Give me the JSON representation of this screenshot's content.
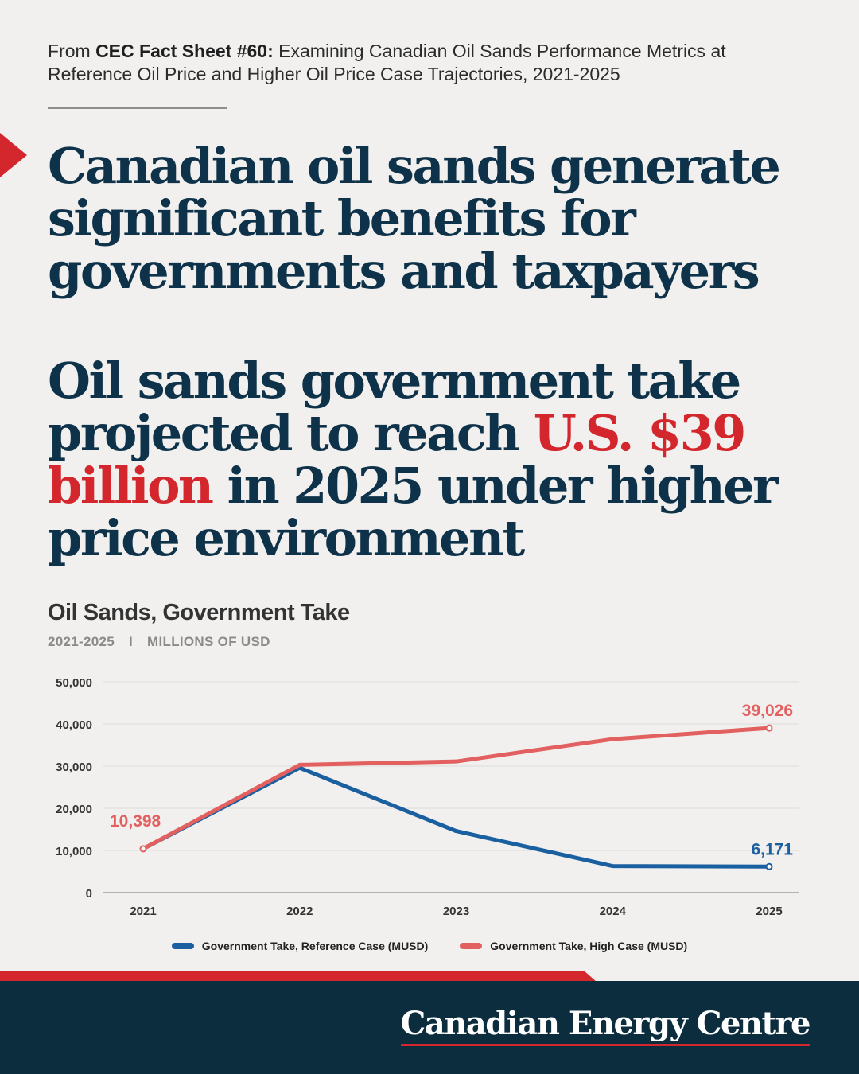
{
  "source": {
    "prefix": "From ",
    "bold": "CEC Fact Sheet #60:",
    "rest": " Examining Canadian Oil Sands Performance Metrics at Reference Oil Price and Higher Oil Price Case Trajectories, 2021-2025"
  },
  "headline1": "Canadian oil sands generate significant benefits for governments and taxpayers",
  "headline2": {
    "part1": "Oil sands government take projected to reach ",
    "highlight": "U.S. $39 billion",
    "part2": " in 2025 under higher price environment"
  },
  "chart_title": "Oil Sands, Government Take",
  "chart_subtitle": {
    "years": "2021-2025",
    "separator": "I",
    "units": "MILLIONS OF USD"
  },
  "brand": "Canadian Energy Centre",
  "colors": {
    "navy": "#0d3249",
    "red": "#d3272d",
    "reference_line": "#1a5fa0",
    "high_line": "#e2605f"
  },
  "chart_data": {
    "type": "line",
    "title": "Oil Sands, Government Take",
    "x": [
      "2021",
      "2022",
      "2023",
      "2024",
      "2025"
    ],
    "ylim": [
      0,
      50000
    ],
    "yticks": [
      0,
      10000,
      20000,
      30000,
      40000,
      50000
    ],
    "ytick_labels": [
      "0",
      "10,000",
      "20,000",
      "30,000",
      "40,000",
      "50,000"
    ],
    "grid": true,
    "legend_position": "bottom",
    "series": [
      {
        "name": "Government Take, Reference Case (MUSD)",
        "color": "#1a5fa0",
        "values": [
          10398,
          29600,
          14600,
          6300,
          6171
        ]
      },
      {
        "name": "Government Take, High Case (MUSD)",
        "color": "#e2605f",
        "values": [
          10398,
          30300,
          31100,
          36400,
          39026
        ]
      }
    ],
    "annotations": [
      {
        "series": 1,
        "index": 0,
        "label": "10,398"
      },
      {
        "series": 1,
        "index": 4,
        "label": "39,026"
      },
      {
        "series": 0,
        "index": 4,
        "label": "6,171"
      }
    ]
  }
}
